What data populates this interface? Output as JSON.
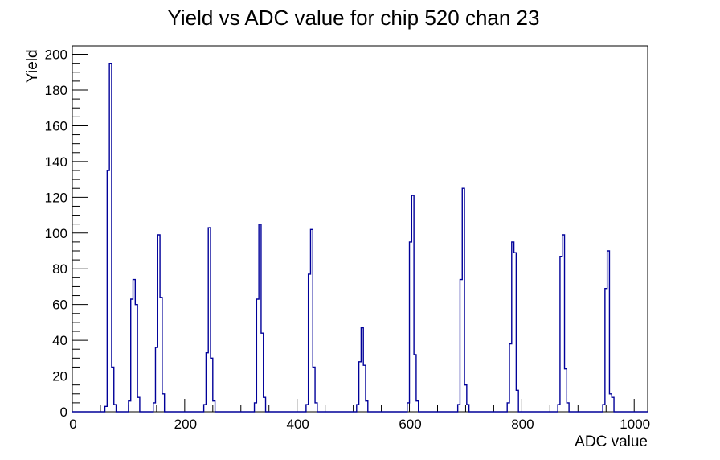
{
  "window": {
    "background": "#ffffff"
  },
  "chart_data": {
    "type": "bar",
    "title": "Yield vs ADC value for chip 520 chan 23",
    "xlabel": "ADC value",
    "ylabel": "Yield",
    "xlim": [
      0,
      1024
    ],
    "ylim": [
      0,
      204.75
    ],
    "x_major_ticks": [
      0,
      200,
      400,
      600,
      800,
      1000
    ],
    "x_minor_step": 50,
    "y_major_ticks": [
      0,
      20,
      40,
      60,
      80,
      100,
      120,
      140,
      160,
      180,
      200
    ],
    "y_minor_step": 5,
    "grid": false,
    "legend": "none",
    "hist_line_color": "#000099",
    "axis_color": "#000000",
    "bin_width": 4,
    "peaks": [
      {
        "adc": 68,
        "height": 195,
        "bins": [
          [
            60,
            3
          ],
          [
            64,
            135
          ],
          [
            68,
            195
          ],
          [
            72,
            25
          ],
          [
            76,
            4
          ]
        ]
      },
      {
        "adc": 110,
        "height": 74,
        "bins": [
          [
            102,
            6
          ],
          [
            106,
            63
          ],
          [
            110,
            74
          ],
          [
            114,
            60
          ],
          [
            118,
            8
          ]
        ]
      },
      {
        "adc": 154,
        "height": 99,
        "bins": [
          [
            146,
            5
          ],
          [
            150,
            36
          ],
          [
            154,
            99
          ],
          [
            158,
            64
          ],
          [
            162,
            10
          ]
        ]
      },
      {
        "adc": 244,
        "height": 103,
        "bins": [
          [
            236,
            4
          ],
          [
            240,
            33
          ],
          [
            244,
            103
          ],
          [
            248,
            30
          ],
          [
            252,
            6
          ]
        ]
      },
      {
        "adc": 334,
        "height": 105,
        "bins": [
          [
            326,
            5
          ],
          [
            330,
            63
          ],
          [
            334,
            105
          ],
          [
            338,
            44
          ],
          [
            342,
            8
          ]
        ]
      },
      {
        "adc": 426,
        "height": 102,
        "bins": [
          [
            418,
            4
          ],
          [
            422,
            77
          ],
          [
            426,
            102
          ],
          [
            430,
            25
          ],
          [
            434,
            5
          ]
        ]
      },
      {
        "adc": 516,
        "height": 47,
        "bins": [
          [
            508,
            4
          ],
          [
            512,
            28
          ],
          [
            516,
            47
          ],
          [
            520,
            26
          ],
          [
            524,
            6
          ]
        ]
      },
      {
        "adc": 606,
        "height": 121,
        "bins": [
          [
            598,
            5
          ],
          [
            602,
            95
          ],
          [
            606,
            121
          ],
          [
            610,
            32
          ],
          [
            614,
            6
          ]
        ]
      },
      {
        "adc": 696,
        "height": 125,
        "bins": [
          [
            688,
            4
          ],
          [
            692,
            74
          ],
          [
            696,
            125
          ],
          [
            700,
            15
          ],
          [
            704,
            4
          ]
        ]
      },
      {
        "adc": 784,
        "height": 95,
        "bins": [
          [
            776,
            5
          ],
          [
            780,
            38
          ],
          [
            784,
            95
          ],
          [
            788,
            89
          ],
          [
            792,
            12
          ]
        ]
      },
      {
        "adc": 874,
        "height": 99,
        "bins": [
          [
            866,
            4
          ],
          [
            870,
            87
          ],
          [
            874,
            99
          ],
          [
            878,
            24
          ],
          [
            882,
            5
          ]
        ]
      },
      {
        "adc": 954,
        "height": 90,
        "bins": [
          [
            946,
            4
          ],
          [
            950,
            69
          ],
          [
            954,
            90
          ],
          [
            958,
            10
          ],
          [
            962,
            8
          ]
        ]
      }
    ]
  }
}
